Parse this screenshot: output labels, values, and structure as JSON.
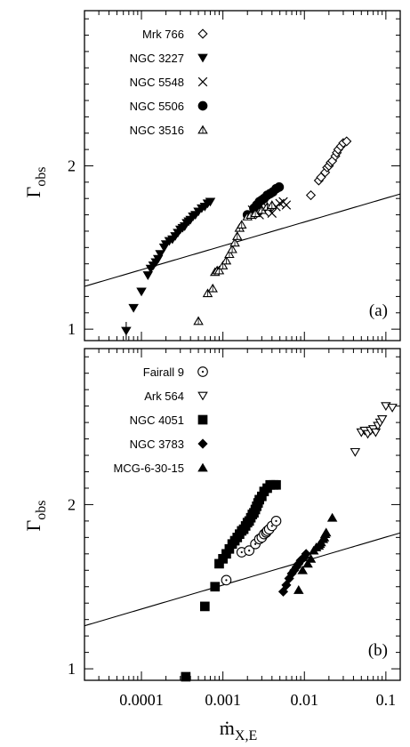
{
  "chart_data": [
    {
      "type": "scatter",
      "panel_label": "(a)",
      "ylabel": "Γ",
      "ylabel_sub": "obs",
      "xscale": "log",
      "xlim": [
        2e-05,
        0.15
      ],
      "ylim": [
        0.93,
        2.95
      ],
      "yticks": [
        {
          "value": 1,
          "label": "1"
        },
        {
          "value": 2,
          "label": "2"
        }
      ],
      "legend_position": "top-left",
      "model_curve": {
        "a": 1.51,
        "b": 0.146
      },
      "series": [
        {
          "name": "Mrk 766",
          "marker": "diamond-open",
          "x": [
            0.012,
            0.015,
            0.016,
            0.018,
            0.019,
            0.02,
            0.021,
            0.022,
            0.024,
            0.025,
            0.026,
            0.028,
            0.03,
            0.033
          ],
          "y": [
            1.82,
            1.91,
            1.93,
            1.96,
            1.99,
            2.0,
            2.02,
            2.03,
            2.06,
            2.08,
            2.1,
            2.12,
            2.14,
            2.15
          ]
        },
        {
          "name": "NGC 3227",
          "marker": "triangle-down-filled",
          "x": [
            6.5e-05,
            8e-05,
            0.0001,
            0.00012,
            0.00013,
            0.00014,
            0.00015,
            0.00016,
            0.00017,
            0.00019,
            0.0002,
            0.00022,
            0.00024,
            0.00026,
            0.00028,
            0.0003,
            0.00032,
            0.00034,
            0.00036,
            0.00038,
            0.0004,
            0.00043,
            0.00046,
            0.0005,
            0.00055,
            0.0006,
            0.00065,
            0.0007
          ],
          "y": [
            0.99,
            1.13,
            1.23,
            1.33,
            1.37,
            1.39,
            1.41,
            1.43,
            1.46,
            1.5,
            1.52,
            1.54,
            1.55,
            1.57,
            1.59,
            1.61,
            1.62,
            1.63,
            1.65,
            1.66,
            1.67,
            1.69,
            1.7,
            1.72,
            1.74,
            1.75,
            1.77,
            1.78
          ]
        },
        {
          "name": "NGC 5548",
          "marker": "x",
          "x": [
            0.0023,
            0.0028,
            0.0032,
            0.0036,
            0.004,
            0.0045,
            0.005,
            0.0055,
            0.006
          ],
          "y": [
            1.73,
            1.7,
            1.72,
            1.74,
            1.71,
            1.75,
            1.77,
            1.78,
            1.76
          ]
        },
        {
          "name": "NGC 5506",
          "marker": "circle-filled",
          "x": [
            0.002,
            0.0024,
            0.0026,
            0.0028,
            0.003,
            0.0032,
            0.0035,
            0.0038,
            0.0041,
            0.0045,
            0.0049
          ],
          "y": [
            1.7,
            1.74,
            1.76,
            1.78,
            1.79,
            1.8,
            1.82,
            1.83,
            1.84,
            1.86,
            1.87
          ]
        },
        {
          "name": "NGC 3516",
          "marker": "triangle-up-open",
          "x": [
            0.0005,
            0.00065,
            0.00075,
            0.0008,
            0.00085,
            0.0009,
            0.001,
            0.0011,
            0.0012,
            0.0013,
            0.0014,
            0.0015,
            0.0016,
            0.0017,
            0.002,
            0.0022,
            0.0025,
            0.003,
            0.0035,
            0.004
          ],
          "y": [
            1.05,
            1.22,
            1.25,
            1.35,
            1.36,
            1.36,
            1.39,
            1.42,
            1.46,
            1.49,
            1.53,
            1.57,
            1.62,
            1.64,
            1.69,
            1.7,
            1.71,
            1.73,
            1.75,
            1.76
          ]
        }
      ]
    },
    {
      "type": "scatter",
      "panel_label": "(b)",
      "xlabel": "ṁ",
      "xlabel_sub": "X,E",
      "ylabel": "Γ",
      "ylabel_sub": "obs",
      "xscale": "log",
      "xlim": [
        2e-05,
        0.15
      ],
      "ylim": [
        0.93,
        2.95
      ],
      "xticks": [
        {
          "value": 0.0001,
          "label": "0.0001"
        },
        {
          "value": 0.001,
          "label": "0.001"
        },
        {
          "value": 0.01,
          "label": "0.01"
        },
        {
          "value": 0.1,
          "label": "0.1"
        }
      ],
      "yticks": [
        {
          "value": 1,
          "label": "1"
        },
        {
          "value": 2,
          "label": "2"
        }
      ],
      "legend_position": "top-left",
      "model_curve": {
        "a": 1.51,
        "b": 0.146
      },
      "series": [
        {
          "name": "Fairall 9",
          "marker": "circle-dot-open",
          "x": [
            0.0011,
            0.0017,
            0.0021,
            0.0025,
            0.0028,
            0.003,
            0.0032,
            0.0034,
            0.0035,
            0.0037,
            0.004,
            0.0045
          ],
          "y": [
            1.54,
            1.71,
            1.72,
            1.76,
            1.79,
            1.8,
            1.82,
            1.83,
            1.84,
            1.85,
            1.87,
            1.9
          ]
        },
        {
          "name": "Ark 564",
          "marker": "triangle-down-open",
          "x": [
            0.042,
            0.05,
            0.055,
            0.06,
            0.065,
            0.07,
            0.075,
            0.08,
            0.085,
            0.09,
            0.1,
            0.12
          ],
          "y": [
            2.32,
            2.44,
            2.45,
            2.43,
            2.45,
            2.46,
            2.44,
            2.48,
            2.5,
            2.52,
            2.6,
            2.59
          ]
        },
        {
          "name": "NGC 4051",
          "marker": "square-filled",
          "x": [
            0.00035,
            0.0006,
            0.0008,
            0.0009,
            0.001,
            0.0011,
            0.0012,
            0.0013,
            0.0014,
            0.0015,
            0.0016,
            0.0017,
            0.0018,
            0.0019,
            0.002,
            0.0021,
            0.0022,
            0.0023,
            0.0024,
            0.0025,
            0.0026,
            0.0027,
            0.0028,
            0.003,
            0.0032,
            0.0035,
            0.0038,
            0.0042,
            0.0045
          ],
          "y": [
            0.93,
            1.38,
            1.5,
            1.64,
            1.67,
            1.7,
            1.73,
            1.76,
            1.78,
            1.8,
            1.82,
            1.84,
            1.85,
            1.87,
            1.89,
            1.9,
            1.92,
            1.94,
            1.95,
            1.97,
            1.99,
            2.01,
            2.03,
            2.05,
            2.08,
            2.1,
            2.12,
            2.12,
            2.12
          ]
        },
        {
          "name": "NGC 3783",
          "marker": "diamond-filled",
          "x": [
            0.0055,
            0.006,
            0.0065,
            0.007,
            0.0075,
            0.008,
            0.0085,
            0.009,
            0.0095,
            0.01,
            0.0105
          ],
          "y": [
            1.47,
            1.51,
            1.55,
            1.58,
            1.6,
            1.62,
            1.64,
            1.66,
            1.67,
            1.68,
            1.7
          ]
        },
        {
          "name": "MCG-6-30-15",
          "marker": "triangle-up-filled",
          "x": [
            0.0085,
            0.0095,
            0.011,
            0.012,
            0.013,
            0.014,
            0.015,
            0.0155,
            0.016,
            0.017,
            0.0175,
            0.018,
            0.0185,
            0.022
          ],
          "y": [
            1.48,
            1.6,
            1.64,
            1.67,
            1.72,
            1.74,
            1.75,
            1.76,
            1.77,
            1.79,
            1.8,
            1.82,
            1.83,
            1.92
          ]
        }
      ]
    }
  ]
}
